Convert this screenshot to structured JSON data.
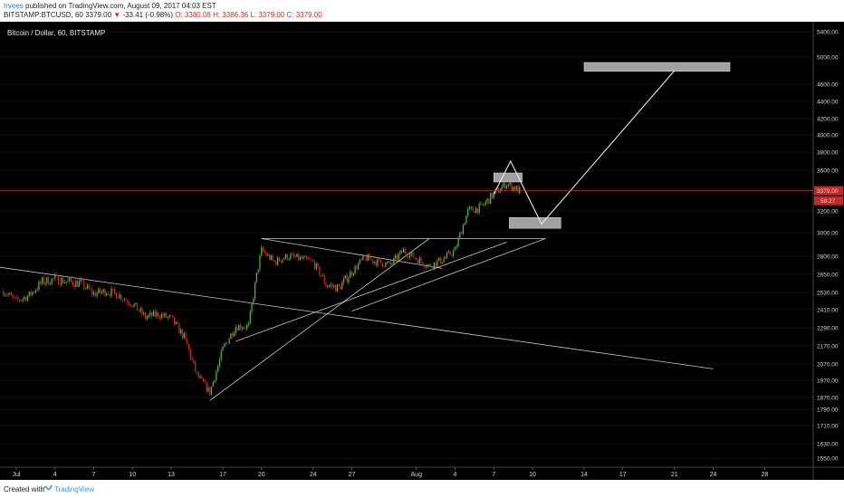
{
  "header": {
    "author": "Irvees",
    "published_text": " published on TradingView.com, August 09, 2017 04:03 EST",
    "symbol": "BITSTAMP:BTCUSD, 60",
    "last": "3379.00",
    "change_arrow": "▼",
    "change": "-33.41 (-0.98%)",
    "open": "O: 3380.08",
    "high": "H: 3386.36",
    "low": "L: 3379.00",
    "close": "C: 3379.00"
  },
  "footer": {
    "created_with": "Created with",
    "brand": "TradingView"
  },
  "colors": {
    "background": "#000000",
    "candle_up": "#4bbf4b",
    "candle_down": "#e0251b",
    "lines": "#e8e8e8",
    "price_line": "#c62828",
    "zone": "#bdbdbd"
  },
  "chart_data": {
    "type": "candlestick",
    "title": "Bitcoin / Dollar, 60, BITSTAMP",
    "price_label": "3379.00",
    "countdown_label": "58:27",
    "y_ticks": [
      "5400.00",
      "5000.00",
      "4600.00",
      "4400.00",
      "4200.00",
      "4000.00",
      "3800.00",
      "3600.00",
      "3400.00",
      "3200.00",
      "3000.00",
      "2800.00",
      "2650.00",
      "2530.00",
      "2410.00",
      "2290.00",
      "2170.00",
      "2070.00",
      "1970.00",
      "1870.00",
      "1790.00",
      "1710.00",
      "1630.00",
      "1550.00"
    ],
    "x_ticks": [
      "Jul",
      "4",
      "7",
      "10",
      "13",
      "17",
      "20",
      "24",
      "27",
      "Aug",
      "4",
      "7",
      "10",
      "14",
      "17",
      "21",
      "24",
      "28"
    ],
    "series_points": [
      [
        "Jun 30",
        2540
      ],
      [
        "Jul 1",
        2470
      ],
      [
        "Jul 2",
        2510
      ],
      [
        "Jul 3",
        2600
      ],
      [
        "Jul 4",
        2620
      ],
      [
        "Jul 5",
        2600
      ],
      [
        "Jul 6",
        2590
      ],
      [
        "Jul 7",
        2520
      ],
      [
        "Jul 8",
        2540
      ],
      [
        "Jul 9",
        2510
      ],
      [
        "Jul 10",
        2450
      ],
      [
        "Jul 11",
        2360
      ],
      [
        "Jul 12",
        2380
      ],
      [
        "Jul 13",
        2350
      ],
      [
        "Jul 14",
        2230
      ],
      [
        "Jul 15",
        2000
      ],
      [
        "Jul 16",
        1900
      ],
      [
        "Jul 17",
        2150
      ],
      [
        "Jul 18",
        2300
      ],
      [
        "Jul 19",
        2300
      ],
      [
        "Jul 20",
        2850
      ],
      [
        "Jul 21",
        2750
      ],
      [
        "Jul 22",
        2800
      ],
      [
        "Jul 23",
        2780
      ],
      [
        "Jul 24",
        2750
      ],
      [
        "Jul 25",
        2580
      ],
      [
        "Jul 26",
        2560
      ],
      [
        "Jul 27",
        2670
      ],
      [
        "Jul 28",
        2790
      ],
      [
        "Jul 29",
        2750
      ],
      [
        "Jul 30",
        2730
      ],
      [
        "Jul 31",
        2850
      ],
      [
        "Aug 1",
        2780
      ],
      [
        "Aug 2",
        2720
      ],
      [
        "Aug 3",
        2770
      ],
      [
        "Aug 4",
        2850
      ],
      [
        "Aug 5",
        3200
      ],
      [
        "Aug 6",
        3230
      ],
      [
        "Aug 7",
        3350
      ],
      [
        "Aug 8",
        3450
      ],
      [
        "Aug 9",
        3379
      ]
    ],
    "trendlines": [
      {
        "from": [
          "Jun 29",
          2720
        ],
        "to": [
          "Aug 24",
          2040
        ]
      },
      {
        "from": [
          "Jul 16",
          1850
        ],
        "to": [
          "Aug 2",
          2950
        ]
      },
      {
        "from": [
          "Jul 20",
          2950
        ],
        "to": [
          "Aug 11",
          2950
        ]
      },
      {
        "from": [
          "Jul 20",
          2950
        ],
        "to": [
          "Aug 3",
          2700
        ]
      },
      {
        "from": [
          "Jul 18",
          2200
        ],
        "to": [
          "Aug 8",
          2920
        ]
      },
      {
        "from": [
          "Jul 27",
          2400
        ],
        "to": [
          "Aug 11",
          2950
        ]
      }
    ],
    "projection_path": [
      [
        "Aug 7",
        3350
      ],
      [
        "Aug 8.3",
        3700
      ],
      [
        "Aug 10.7",
        3080
      ],
      [
        "Aug 21",
        4800
      ]
    ],
    "zones": [
      {
        "from": [
          "Aug 7",
          3470
        ],
        "to": [
          "Aug 9.2",
          3570
        ]
      },
      {
        "from": [
          "Aug 8.2",
          3040
        ],
        "to": [
          "Aug 12.2",
          3140
        ]
      },
      {
        "from": [
          "Aug 14",
          4790
        ],
        "to": [
          "Aug 25.3",
          4920
        ]
      }
    ]
  }
}
